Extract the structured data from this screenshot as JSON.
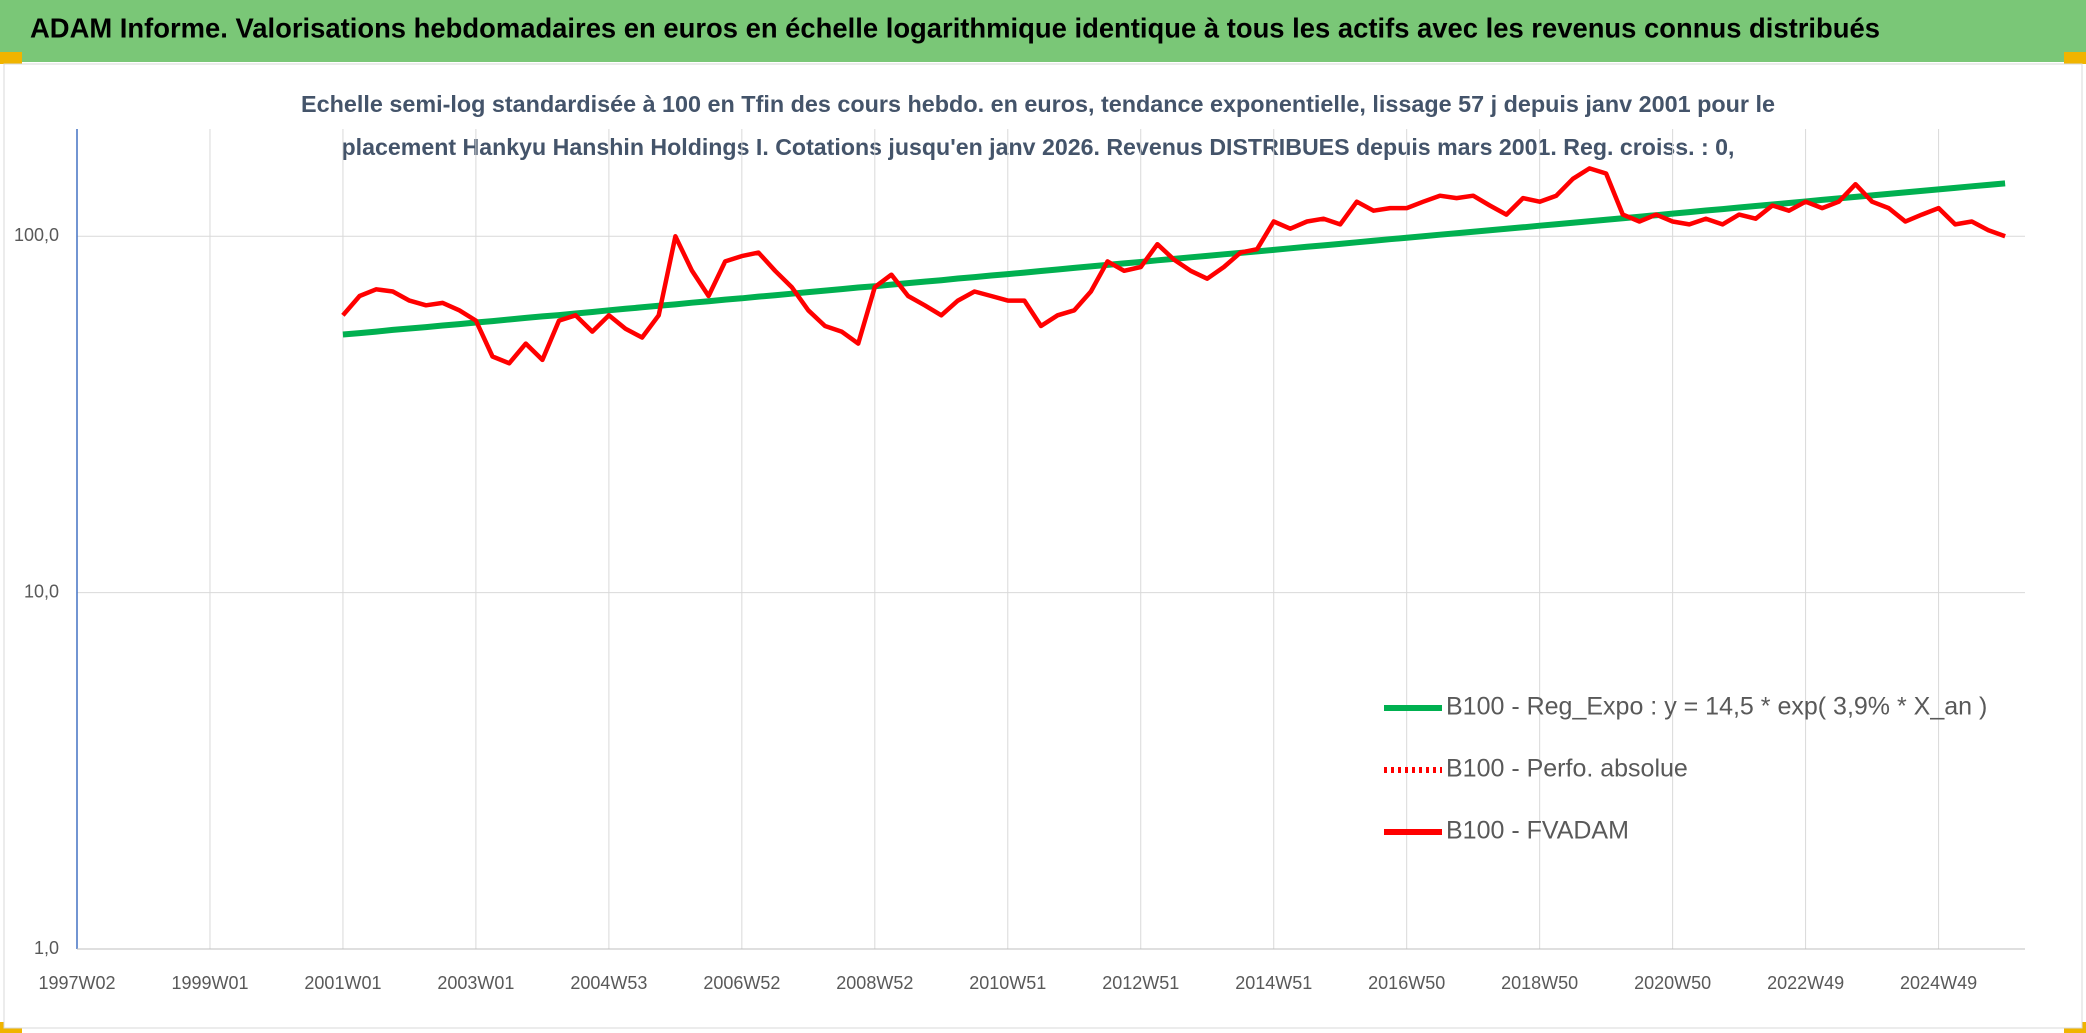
{
  "header": {
    "title": "ADAM Informe. Valorisations hebdomadaires en euros en échelle logarithmique identique à tous les actifs avec les revenus connus distribués"
  },
  "chart_data": {
    "type": "line",
    "title": "Echelle semi-log standardisée à 100 en Tfin des cours hebdo. en euros, tendance exponentielle, lissage 57 j depuis janv 2001 pour le",
    "subtitle": "placement Hankyu Hanshin Holdings I. Cotations jusqu'en janv 2026. Revenus DISTRIBUES depuis mars 2001. Reg. croiss. : 0,",
    "log_scale": true,
    "grid": true,
    "ylim": [
      1,
      200
    ],
    "yticks": [
      {
        "value": 1,
        "label": "1,0"
      },
      {
        "value": 10,
        "label": "10,0"
      },
      {
        "value": 100,
        "label": "100,0"
      }
    ],
    "categories": [
      "1997W02",
      null,
      null,
      null,
      null,
      null,
      null,
      null,
      "1999W01",
      null,
      null,
      null,
      null,
      null,
      null,
      null,
      "2001W01",
      null,
      null,
      null,
      null,
      null,
      null,
      null,
      "2003W01",
      null,
      null,
      null,
      null,
      null,
      null,
      null,
      "2004W53",
      null,
      null,
      null,
      null,
      null,
      null,
      null,
      "2006W52",
      null,
      null,
      null,
      null,
      null,
      null,
      null,
      "2008W52",
      null,
      null,
      null,
      null,
      null,
      null,
      null,
      "2010W51",
      null,
      null,
      null,
      null,
      null,
      null,
      null,
      "2012W51",
      null,
      null,
      null,
      null,
      null,
      null,
      null,
      "2014W51",
      null,
      null,
      null,
      null,
      null,
      null,
      null,
      "2016W50",
      null,
      null,
      null,
      null,
      null,
      null,
      null,
      "2018W50",
      null,
      null,
      null,
      null,
      null,
      null,
      null,
      "2020W50",
      null,
      null,
      null,
      null,
      null,
      null,
      null,
      "2022W49",
      null,
      null,
      null,
      null,
      null,
      null,
      null,
      "2024W49",
      null,
      null,
      null,
      null
    ],
    "legend_position": "lower right",
    "series": [
      {
        "name": "B100 - Reg_Expo : y = 14,5 * exp( 3,9% *  X_an )",
        "color": "#00b050",
        "style": "solid",
        "values": [
          null,
          null,
          null,
          null,
          null,
          null,
          null,
          null,
          null,
          null,
          null,
          null,
          null,
          null,
          null,
          null,
          53.0,
          53.5,
          54.0,
          54.6,
          55.1,
          55.6,
          56.2,
          56.7,
          57.3,
          57.8,
          58.4,
          59.0,
          59.6,
          60.1,
          60.7,
          61.3,
          62.0,
          62.6,
          63.2,
          63.8,
          64.4,
          65.1,
          65.7,
          66.4,
          67.0,
          67.7,
          68.3,
          69.0,
          69.7,
          70.4,
          71.1,
          71.8,
          72.4,
          73.2,
          73.9,
          74.6,
          75.3,
          76.1,
          76.8,
          77.6,
          78.3,
          79.1,
          79.9,
          80.7,
          81.5,
          82.3,
          83.1,
          83.9,
          84.7,
          85.6,
          86.4,
          87.3,
          88.1,
          89.0,
          89.8,
          90.7,
          91.6,
          92.5,
          93.4,
          94.3,
          95.2,
          96.2,
          97.1,
          98.1,
          99.0,
          100.0,
          101.0,
          102.0,
          103.0,
          104.0,
          105.0,
          106.0,
          107.1,
          108.1,
          109.2,
          110.2,
          111.3,
          112.4,
          113.5,
          114.6,
          115.8,
          116.9,
          118.1,
          119.2,
          120.4,
          121.6,
          122.8,
          124.0,
          125.2,
          126.5,
          127.7,
          129.0,
          130.2,
          131.5,
          132.8,
          134.1,
          135.4,
          136.7,
          138.1,
          139.4,
          140.7
        ]
      },
      {
        "name": "B100 - Perfo. absolue",
        "color": "#ff0000",
        "style": "dotted"
      },
      {
        "name": "B100 - FVADAM",
        "color": "#ff0000",
        "style": "solid",
        "values": [
          null,
          null,
          null,
          null,
          null,
          null,
          null,
          null,
          null,
          null,
          null,
          null,
          null,
          null,
          null,
          null,
          60,
          68,
          71,
          70,
          66,
          64,
          65,
          62,
          58,
          46,
          44,
          50,
          45,
          58,
          60,
          54,
          60,
          55,
          52,
          60,
          100,
          80,
          68,
          85,
          88,
          90,
          80,
          72,
          62,
          56,
          54,
          50,
          72,
          78,
          68,
          64,
          60,
          66,
          70,
          68,
          66,
          66,
          56,
          60,
          62,
          70,
          85,
          80,
          82,
          95,
          86,
          80,
          76,
          82,
          90,
          92,
          110,
          105,
          110,
          112,
          108,
          125,
          118,
          120,
          120,
          125,
          130,
          128,
          130,
          122,
          115,
          128,
          125,
          130,
          145,
          155,
          150,
          115,
          110,
          115,
          110,
          108,
          112,
          108,
          115,
          112,
          122,
          118,
          125,
          120,
          125,
          140,
          125,
          120,
          110,
          115,
          120,
          108,
          110,
          104,
          100
        ]
      }
    ]
  }
}
